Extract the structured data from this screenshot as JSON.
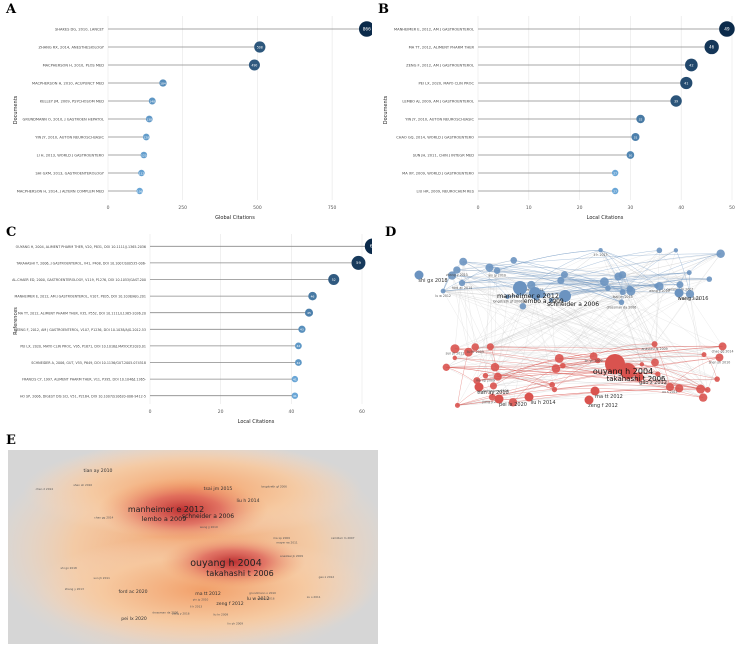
{
  "panel_letters": [
    "A",
    "B",
    "C",
    "D",
    "E"
  ],
  "colors": {
    "dark_navy": "#0b2a4a",
    "mid_blue": "#3a6f9c",
    "light_blue": "#6aa6d6",
    "blue_cluster": "#6b93c0",
    "red_cluster": "#d9534f",
    "heat_bg": "#d6d6d6",
    "heat_warm": "#f0a070",
    "heat_hot": "#c0392b"
  },
  "chart_data": [
    {
      "panel": "A",
      "type": "lollipop",
      "ylabel": "Documents",
      "xlabel": "Global Citations",
      "xlim": [
        0,
        850
      ],
      "xticks": [
        "0",
        "250",
        "500",
        "750"
      ],
      "categories": [
        "SHAKES DG, 2010, LANCET",
        "ZHANG RX, 2014, ANESTHESIOLOGY",
        "MACPHERSON H, 2010, PLOS MED",
        "MACPHERSON H, 2010, ACUPUNCT MED",
        "KELLEY JM, 2009, PSYCHOSOM MED",
        "GRUNDMANN O, 2010, J GASTROEN HEPATOL",
        "YIN JY, 2010, AUTON NEUROSCI-BASIC",
        "LI H, 2013, WORLD J GASTROENTERO",
        "SHI GXM, 2013, GASTROENTEROLOGY",
        "MACPHERSON H, 2014, J ALTERN COMPLEM MED"
      ],
      "values": [
        866,
        508,
        490,
        184,
        148,
        138,
        128,
        120,
        112,
        106
      ]
    },
    {
      "panel": "B",
      "type": "lollipop",
      "ylabel": "Documents",
      "xlabel": "Local Citations",
      "xlim": [
        0,
        50
      ],
      "xticks": [
        "0",
        "10",
        "20",
        "30",
        "40",
        "50"
      ],
      "categories": [
        "MANHEIMER E, 2012, AM J GASTROENTEROL",
        "MA TT, 2012, ALIMENT PHARM THER",
        "ZENG F, 2012, AM J GASTROENTEROL",
        "PEI LX, 2020, MAYO CLIN PROC",
        "LEMBO AJ, 2009, AM J GASTROENTEROL",
        "YIN JY, 2010, AUTON NEUROSCI-BASIC",
        "CHAO GQ, 2014, WORLD J GASTROENTERO",
        "SUN JH, 2011, CHIN J INTEGR MED",
        "MA XP, 2009, WORLD J GASTROENTERO",
        "LIU HR, 2009, NEUROCHEM RES"
      ],
      "values": [
        49,
        46,
        42,
        41,
        39,
        32,
        31,
        30,
        27,
        27
      ]
    },
    {
      "panel": "C",
      "type": "lollipop",
      "ylabel": "References",
      "xlabel": "Local Citations",
      "xlim": [
        0,
        60
      ],
      "xticks": [
        "0",
        "20",
        "40",
        "60"
      ],
      "categories": [
        "OUYANG H, 2004, ALIMENT PHARM THER, V20, P831, DOI 10.1111/J.1365-2036",
        "TAKAHASHI T, 2006, J GASTROENTEROL, V41, P408, DOI 10.1007/S00535-006-",
        "AL-CHAER ED, 2000, GASTROENTEROLOGY, V119, P1276, DOI 10.1053/GAST.200",
        "MANHEIMER E, 2012, AM J GASTROENTEROL, V107, P835, DOI 10.1038/AJG.201",
        "MA TT, 2012, ALIMENT PHARM THER, V35, P552, DOI 10.1111/J.1365-2036.20",
        "ZENG F, 2012, AM J GASTROENTEROL, V107, P1236, DOI 10.1038/AJG.2012.53",
        "PEI LX, 2020, MAYO CLIN PROC, V95, P1671, DOI 10.1016/J.MAYOCP.2020.01",
        "SCHNEIDER A, 2006, GUT, V55, P649, DOI 10.1136/GUT.2005.074518",
        "FRANCIS CY, 1997, ALIMENT PHARM THER, V11, P395, DOI 10.1046/J.1365-",
        "HO SP, 2006, DIGEST DIS SCI, V51, P2164, DOI 10.1007/S10620-006-9412-5"
      ],
      "values": [
        63,
        59,
        52,
        46,
        45,
        43,
        42,
        42,
        41,
        41
      ]
    }
  ],
  "network": {
    "big_labels": [
      "ouyang h 2004",
      "takahashi t 2006",
      "manheimer e 2012",
      "lembo a 2009",
      "schneider a 2006"
    ],
    "medium_labels": [
      "ma tt 2012",
      "zeng f 2012",
      "liu h 2014",
      "pei lx 2020",
      "tian ay 2010",
      "gao z 2012",
      "shi gx 2018",
      "wang l 2016"
    ],
    "small_labels": [
      "drossman da 2006",
      "mayer ea 2011",
      "longstreth gf 2006",
      "tsai jm 2015",
      "wang jj 2010",
      "chen d 2014",
      "yin jy 2010",
      "lu w 2012",
      "li h 2013",
      "ford ac 2014",
      "camilleri m 2007",
      "zhang y 2013",
      "sun jh 2011",
      "chao gq 2014",
      "ma xp 2009",
      "xu s 2011",
      "jiang y 2016",
      "lin yh 2009",
      "liu hr 2009",
      "grundmann o 2010",
      "shen sh 2010",
      "anastasi jk 2009"
    ]
  },
  "density": {
    "big_labels": [
      "ouyang h 2004",
      "takahashi t 2006",
      "manheimer e 2012",
      "lembo a 2009",
      "schneider a 2006"
    ],
    "medium_labels": [
      "ma tt 2012",
      "zeng f 2012",
      "ford ac 2020",
      "tian ay 2010",
      "liu h 2014",
      "pei lx 2020",
      "lu w 2012",
      "tsai jm 2015"
    ],
    "small_labels": [
      "drossman da 2006",
      "yin jy 2010",
      "wang jj 2010",
      "chen d 2014",
      "camilleri m 2007",
      "zhang y 2013",
      "li h 2013",
      "shi gx 2018",
      "ma xp 2009",
      "chao gq 2014",
      "sun jh 2011",
      "xu s 2011",
      "jiang y 2016",
      "lin yh 2009",
      "longstreth gf 2006",
      "liu hr 2009",
      "grundmann o 2010",
      "wang l 2016",
      "gao z 2012",
      "mayer ea 2011",
      "shen sh 2010",
      "anastasi jk 2009"
    ]
  }
}
